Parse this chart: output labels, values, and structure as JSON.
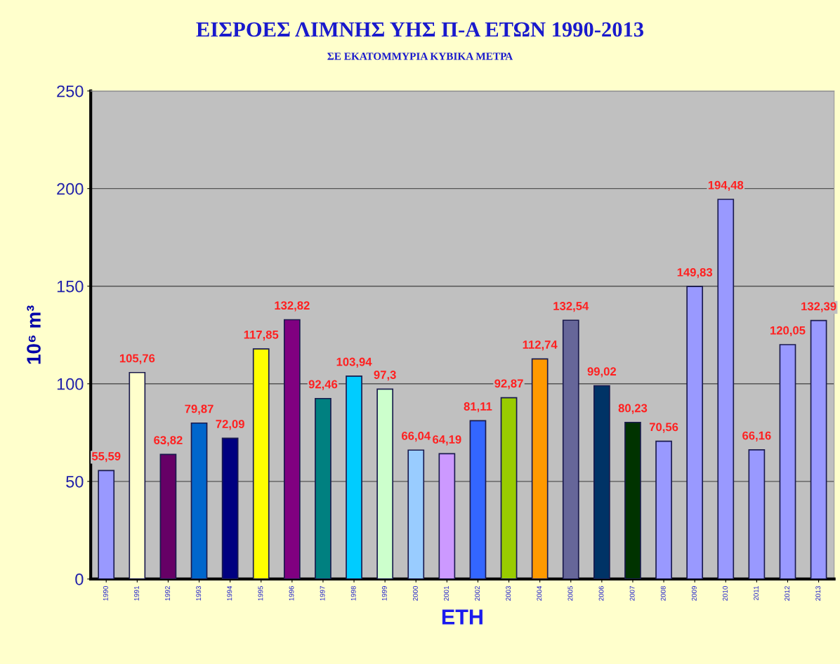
{
  "chart_data": {
    "type": "bar",
    "title": "ΕΙΣΡΟΕΣ ΛΙΜΝΗΣ ΥΗΣ Π-Α ΕΤΩΝ 1990-2013",
    "subtitle": "ΣΕ ΕΚΑΤΟΜΜΥΡΙΑ ΚΥΒΙΚΑ ΜΕΤΡΑ",
    "xlabel": "ΕΤΗ",
    "ylabel": "10⁶ m³",
    "categories": [
      "1990",
      "1991",
      "1992",
      "1993",
      "1994",
      "1995",
      "1996",
      "1997",
      "1998",
      "1999",
      "2000",
      "2001",
      "2002",
      "2003",
      "2004",
      "2005",
      "2006",
      "2007",
      "2008",
      "2009",
      "2010",
      "2011",
      "2012",
      "2013"
    ],
    "values": [
      55.59,
      105.76,
      63.82,
      79.87,
      72.09,
      117.85,
      132.82,
      92.46,
      103.94,
      97.3,
      66.04,
      64.19,
      81.11,
      92.87,
      112.74,
      132.54,
      99.02,
      80.23,
      70.56,
      149.83,
      194.48,
      66.16,
      120.05,
      132.39
    ],
    "value_labels": [
      "55,59",
      "105,76",
      "63,82",
      "79,87",
      "72,09",
      "117,85",
      "132,82",
      "92,46",
      "103,94",
      "97,3",
      "66,04",
      "64,19",
      "81,11",
      "92,87",
      "112,74",
      "132,54",
      "99,02",
      "80,23",
      "70,56",
      "149,83",
      "194,48",
      "66,16",
      "120,05",
      "132,39"
    ],
    "colors": [
      "#9999ff",
      "#ffffcc",
      "#660066",
      "#0066cc",
      "#000080",
      "#ffff00",
      "#800080",
      "#008080",
      "#00ccff",
      "#ccffcc",
      "#99ccff",
      "#cc99ff",
      "#3366ff",
      "#99cc00",
      "#ff9900",
      "#666699",
      "#003366",
      "#003300",
      "#9999ff",
      "#9999ff",
      "#9999ff",
      "#9999ff",
      "#9999ff",
      "#9999ff"
    ],
    "ylim": [
      0,
      250
    ],
    "yticks": [
      0,
      50,
      100,
      150,
      200,
      250
    ],
    "grid": "y"
  }
}
